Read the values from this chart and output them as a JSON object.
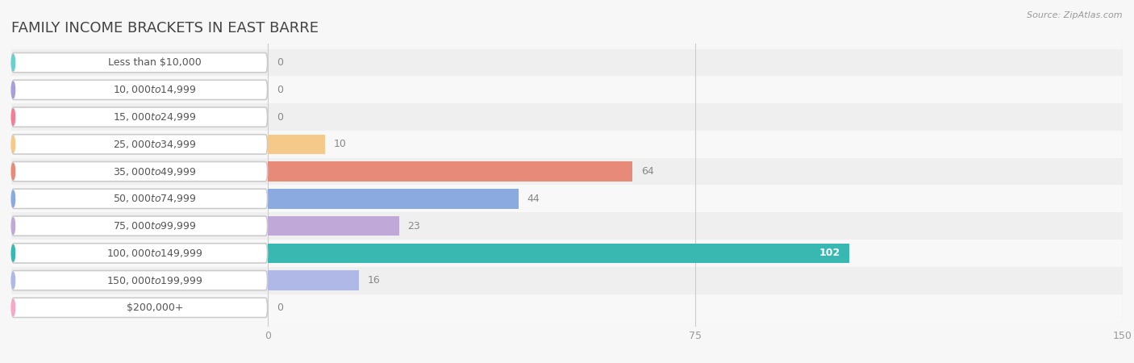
{
  "title": "FAMILY INCOME BRACKETS IN EAST BARRE",
  "source": "Source: ZipAtlas.com",
  "categories": [
    "Less than $10,000",
    "$10,000 to $14,999",
    "$15,000 to $24,999",
    "$25,000 to $34,999",
    "$35,000 to $49,999",
    "$50,000 to $74,999",
    "$75,000 to $99,999",
    "$100,000 to $149,999",
    "$150,000 to $199,999",
    "$200,000+"
  ],
  "values": [
    0,
    0,
    0,
    10,
    64,
    44,
    23,
    102,
    16,
    0
  ],
  "bar_colors": [
    "#6ecfca",
    "#a89fd8",
    "#f08098",
    "#f5c98a",
    "#e88a7a",
    "#8aaae0",
    "#c0a8d8",
    "#38b8b0",
    "#b0b8e8",
    "#f5a8c8"
  ],
  "xlim": [
    0,
    150
  ],
  "xticks": [
    0,
    75,
    150
  ],
  "background_color": "#f7f7f7",
  "row_colors": [
    "#efefef",
    "#f8f8f8"
  ],
  "title_fontsize": 13,
  "label_fontsize": 9,
  "value_fontsize": 9,
  "source_fontsize": 8
}
